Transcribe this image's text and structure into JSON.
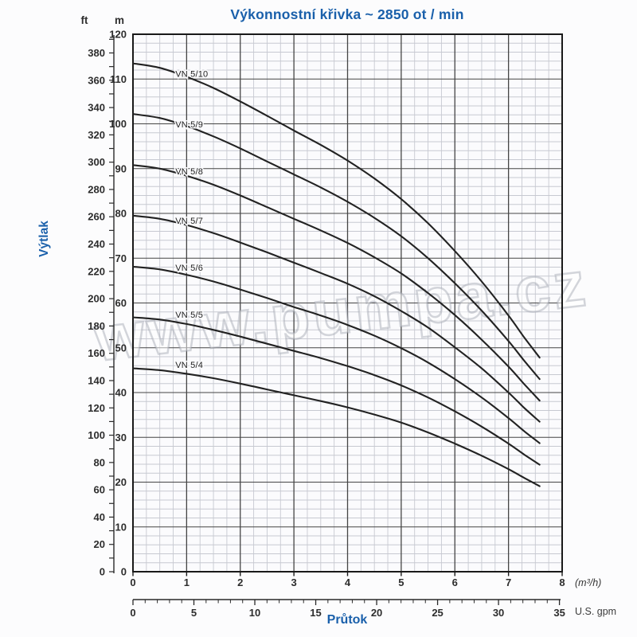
{
  "title": "Výkonnostní křivka ~ 2850 ot / min",
  "y_axis": {
    "label": "Výtlak",
    "unit_left": "ft",
    "unit_right": "m"
  },
  "x_axis": {
    "label": "Průtok",
    "unit_primary": "(m³/h)",
    "unit_secondary": "U.S. gpm"
  },
  "watermark": "www.pumpa.cz",
  "colors": {
    "accent_blue": "#1a60ab",
    "curve": "#222222",
    "grid_minor": "#c7c9d1",
    "grid_major": "#454545",
    "frame": "#191919",
    "tick_text": "#2d2d2d"
  },
  "chart_data": {
    "type": "line",
    "title": "Výkonnostní křivka ~ 2850 ot / min",
    "xlabel": "Průtok",
    "ylabel": "Výtlak",
    "x_units": [
      "m³/h",
      "U.S. gpm"
    ],
    "y_units": [
      "m",
      "ft"
    ],
    "xlim_m3h": [
      0,
      8
    ],
    "ylim_m": [
      0,
      120
    ],
    "ft_axis_max": 390,
    "grid": "major+minor",
    "minor_grid": {
      "x_step_m3h": 0.25,
      "y_step_m": 2
    },
    "legend_position": "inline-labels",
    "x_m3h_ticks": [
      0,
      1,
      2,
      3,
      4,
      5,
      6,
      7,
      8
    ],
    "x_gpm_ticks": [
      0,
      5,
      10,
      15,
      20,
      25,
      30,
      35
    ],
    "y_m_ticks": [
      0,
      10,
      20,
      30,
      40,
      50,
      60,
      70,
      80,
      90,
      100,
      110,
      120
    ],
    "y_ft_ticks": [
      0,
      20,
      40,
      60,
      80,
      100,
      120,
      140,
      160,
      180,
      200,
      220,
      240,
      260,
      280,
      300,
      320,
      340,
      360,
      380
    ],
    "x": [
      0,
      0.5,
      1,
      1.5,
      2,
      2.5,
      3,
      3.5,
      4,
      4.5,
      5,
      5.5,
      6,
      6.5,
      7,
      7.3,
      7.58
    ],
    "series": [
      {
        "name": "VN 5/10",
        "stages": 10,
        "label_at": {
          "x": 0.79,
          "y": 111.2
        },
        "values": [
          113.5,
          112.5,
          110.5,
          108.0,
          105.0,
          101.8,
          98.5,
          95.3,
          91.8,
          87.8,
          83.2,
          77.8,
          71.6,
          64.8,
          57.2,
          52.2,
          47.8
        ]
      },
      {
        "name": "VN 5/9",
        "stages": 9,
        "label_at": {
          "x": 0.79,
          "y": 99.9
        },
        "values": [
          102.2,
          101.3,
          99.5,
          97.2,
          94.5,
          91.6,
          88.7,
          85.8,
          82.6,
          79.0,
          74.9,
          70.0,
          64.4,
          58.3,
          51.5,
          47.0,
          43.0
        ]
      },
      {
        "name": "VN 5/8",
        "stages": 8,
        "label_at": {
          "x": 0.79,
          "y": 89.4
        },
        "values": [
          90.8,
          90.0,
          88.4,
          86.4,
          84.0,
          81.4,
          78.8,
          76.2,
          73.4,
          70.2,
          66.6,
          62.2,
          57.3,
          51.8,
          45.8,
          41.8,
          38.2
        ]
      },
      {
        "name": "VN 5/7",
        "stages": 7,
        "label_at": {
          "x": 0.79,
          "y": 78.4
        },
        "values": [
          79.5,
          78.8,
          77.4,
          75.6,
          73.5,
          71.3,
          69.0,
          66.7,
          64.3,
          61.5,
          58.2,
          54.5,
          50.1,
          45.4,
          40.0,
          36.5,
          33.5
        ]
      },
      {
        "name": "VN 5/6",
        "stages": 6,
        "label_at": {
          "x": 0.79,
          "y": 67.9
        },
        "values": [
          68.1,
          67.5,
          66.3,
          64.8,
          63.0,
          61.1,
          59.1,
          57.2,
          55.1,
          52.7,
          49.9,
          46.7,
          43.0,
          38.9,
          34.3,
          31.3,
          28.7
        ]
      },
      {
        "name": "VN 5/5",
        "stages": 5,
        "label_at": {
          "x": 0.79,
          "y": 57.4
        },
        "values": [
          56.8,
          56.3,
          55.3,
          54.0,
          52.5,
          50.9,
          49.3,
          47.7,
          45.9,
          43.9,
          41.6,
          38.9,
          35.8,
          32.4,
          28.6,
          26.1,
          23.9
        ]
      },
      {
        "name": "VN 5/4",
        "stages": 4,
        "label_at": {
          "x": 0.79,
          "y": 46.2
        },
        "values": [
          45.4,
          45.0,
          44.2,
          43.2,
          42.0,
          40.7,
          39.4,
          38.1,
          36.7,
          35.1,
          33.3,
          31.1,
          28.6,
          25.9,
          22.9,
          20.9,
          19.1
        ]
      }
    ]
  }
}
